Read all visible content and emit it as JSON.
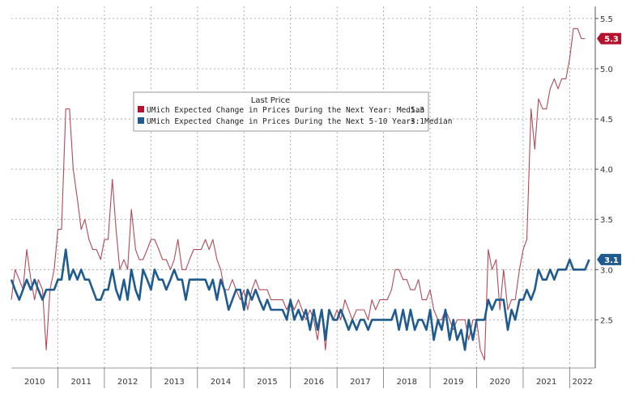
{
  "chart_data": {
    "type": "line",
    "title": "",
    "xlabel": "",
    "ylabel": "",
    "xlim": [
      2010.0,
      2022.55
    ],
    "ylim": [
      2.02,
      5.62
    ],
    "y_axis_side": "right",
    "y_ticks": [
      2.5,
      3.0,
      3.5,
      4.0,
      4.5,
      5.0,
      5.5
    ],
    "y_tick_labels": [
      "2.5",
      "3.0",
      "3.5",
      "4.0",
      "4.5",
      "5.0",
      "5.5"
    ],
    "x_year_labels": [
      "2010",
      "2011",
      "2012",
      "2013",
      "2014",
      "2015",
      "2016",
      "2017",
      "2018",
      "2019",
      "2020",
      "2021",
      "2022"
    ],
    "grid": true,
    "legend": {
      "title": "Last Price",
      "position": "top-center",
      "entries": [
        {
          "label": "UMich Expected Change in Prices During the Next Year: Median",
          "value": "5.3"
        },
        {
          "label": "UMich Expected Change in Prices During the Next 5-10 Years: Median",
          "value": "3.1"
        }
      ]
    },
    "series": [
      {
        "color": "#b04a5a",
        "last_value_label": "5.3",
        "badge_color": "#b5122e",
        "points": [
          [
            2010.0,
            2.7
          ],
          [
            2010.08,
            3.0
          ],
          [
            2010.17,
            2.9
          ],
          [
            2010.25,
            2.8
          ],
          [
            2010.33,
            3.2
          ],
          [
            2010.42,
            2.9
          ],
          [
            2010.5,
            2.7
          ],
          [
            2010.58,
            2.9
          ],
          [
            2010.67,
            2.8
          ],
          [
            2010.75,
            2.2
          ],
          [
            2010.83,
            2.8
          ],
          [
            2010.92,
            3.0
          ],
          [
            2011.0,
            3.4
          ],
          [
            2011.08,
            3.4
          ],
          [
            2011.17,
            4.6
          ],
          [
            2011.25,
            4.6
          ],
          [
            2011.33,
            4.0
          ],
          [
            2011.42,
            3.7
          ],
          [
            2011.5,
            3.4
          ],
          [
            2011.58,
            3.5
          ],
          [
            2011.67,
            3.3
          ],
          [
            2011.75,
            3.2
          ],
          [
            2011.83,
            3.2
          ],
          [
            2011.92,
            3.1
          ],
          [
            2012.0,
            3.3
          ],
          [
            2012.08,
            3.3
          ],
          [
            2012.17,
            3.9
          ],
          [
            2012.25,
            3.4
          ],
          [
            2012.33,
            3.0
          ],
          [
            2012.42,
            3.1
          ],
          [
            2012.5,
            3.0
          ],
          [
            2012.58,
            3.6
          ],
          [
            2012.67,
            3.2
          ],
          [
            2012.75,
            3.1
          ],
          [
            2012.83,
            3.1
          ],
          [
            2012.92,
            3.2
          ],
          [
            2013.0,
            3.3
          ],
          [
            2013.08,
            3.3
          ],
          [
            2013.17,
            3.2
          ],
          [
            2013.25,
            3.1
          ],
          [
            2013.33,
            3.1
          ],
          [
            2013.42,
            3.0
          ],
          [
            2013.5,
            3.1
          ],
          [
            2013.58,
            3.3
          ],
          [
            2013.67,
            3.0
          ],
          [
            2013.75,
            3.0
          ],
          [
            2013.83,
            3.1
          ],
          [
            2013.92,
            3.2
          ],
          [
            2014.0,
            3.2
          ],
          [
            2014.08,
            3.2
          ],
          [
            2014.17,
            3.3
          ],
          [
            2014.25,
            3.2
          ],
          [
            2014.33,
            3.3
          ],
          [
            2014.42,
            3.1
          ],
          [
            2014.5,
            3.0
          ],
          [
            2014.58,
            2.8
          ],
          [
            2014.67,
            2.8
          ],
          [
            2014.75,
            2.9
          ],
          [
            2014.83,
            2.8
          ],
          [
            2014.92,
            2.7
          ],
          [
            2015.0,
            2.8
          ],
          [
            2015.08,
            2.6
          ],
          [
            2015.17,
            2.8
          ],
          [
            2015.25,
            2.9
          ],
          [
            2015.33,
            2.8
          ],
          [
            2015.42,
            2.8
          ],
          [
            2015.5,
            2.8
          ],
          [
            2015.58,
            2.7
          ],
          [
            2015.67,
            2.7
          ],
          [
            2015.75,
            2.7
          ],
          [
            2015.83,
            2.7
          ],
          [
            2015.92,
            2.6
          ],
          [
            2016.0,
            2.7
          ],
          [
            2016.08,
            2.6
          ],
          [
            2016.17,
            2.7
          ],
          [
            2016.25,
            2.6
          ],
          [
            2016.33,
            2.5
          ],
          [
            2016.42,
            2.6
          ],
          [
            2016.5,
            2.5
          ],
          [
            2016.58,
            2.3
          ],
          [
            2016.67,
            2.6
          ],
          [
            2016.75,
            2.2
          ],
          [
            2016.83,
            2.6
          ],
          [
            2016.92,
            2.5
          ],
          [
            2017.0,
            2.6
          ],
          [
            2017.08,
            2.5
          ],
          [
            2017.17,
            2.7
          ],
          [
            2017.25,
            2.6
          ],
          [
            2017.33,
            2.5
          ],
          [
            2017.42,
            2.6
          ],
          [
            2017.5,
            2.6
          ],
          [
            2017.58,
            2.6
          ],
          [
            2017.67,
            2.5
          ],
          [
            2017.75,
            2.7
          ],
          [
            2017.83,
            2.6
          ],
          [
            2017.92,
            2.7
          ],
          [
            2018.0,
            2.7
          ],
          [
            2018.08,
            2.7
          ],
          [
            2018.17,
            2.8
          ],
          [
            2018.25,
            3.0
          ],
          [
            2018.33,
            3.0
          ],
          [
            2018.42,
            2.9
          ],
          [
            2018.5,
            2.9
          ],
          [
            2018.58,
            2.8
          ],
          [
            2018.67,
            2.8
          ],
          [
            2018.75,
            2.9
          ],
          [
            2018.83,
            2.7
          ],
          [
            2018.92,
            2.7
          ],
          [
            2019.0,
            2.8
          ],
          [
            2019.08,
            2.6
          ],
          [
            2019.17,
            2.5
          ],
          [
            2019.25,
            2.5
          ],
          [
            2019.33,
            2.6
          ],
          [
            2019.42,
            2.5
          ],
          [
            2019.5,
            2.4
          ],
          [
            2019.58,
            2.5
          ],
          [
            2019.67,
            2.5
          ],
          [
            2019.75,
            2.5
          ],
          [
            2019.83,
            2.3
          ],
          [
            2019.92,
            2.5
          ],
          [
            2020.0,
            2.5
          ],
          [
            2020.08,
            2.2
          ],
          [
            2020.17,
            2.1
          ],
          [
            2020.25,
            3.2
          ],
          [
            2020.33,
            3.0
          ],
          [
            2020.42,
            3.1
          ],
          [
            2020.5,
            2.6
          ],
          [
            2020.58,
            3.0
          ],
          [
            2020.67,
            2.6
          ],
          [
            2020.75,
            2.7
          ],
          [
            2020.83,
            2.7
          ],
          [
            2020.92,
            3.0
          ],
          [
            2021.0,
            3.2
          ],
          [
            2021.08,
            3.3
          ],
          [
            2021.17,
            4.6
          ],
          [
            2021.25,
            4.2
          ],
          [
            2021.33,
            4.7
          ],
          [
            2021.42,
            4.6
          ],
          [
            2021.5,
            4.6
          ],
          [
            2021.58,
            4.8
          ],
          [
            2021.67,
            4.9
          ],
          [
            2021.75,
            4.8
          ],
          [
            2021.83,
            4.9
          ],
          [
            2021.92,
            4.9
          ],
          [
            2022.0,
            5.1
          ],
          [
            2022.08,
            5.4
          ],
          [
            2022.17,
            5.4
          ],
          [
            2022.25,
            5.3
          ],
          [
            2022.33,
            5.3
          ]
        ]
      },
      {
        "color": "#1f5b8e",
        "last_value_label": "3.1",
        "badge_color": "#1f5b8e",
        "points": [
          [
            2010.0,
            2.9
          ],
          [
            2010.08,
            2.8
          ],
          [
            2010.17,
            2.7
          ],
          [
            2010.25,
            2.8
          ],
          [
            2010.33,
            2.9
          ],
          [
            2010.42,
            2.8
          ],
          [
            2010.5,
            2.9
          ],
          [
            2010.58,
            2.8
          ],
          [
            2010.67,
            2.7
          ],
          [
            2010.75,
            2.8
          ],
          [
            2010.83,
            2.8
          ],
          [
            2010.92,
            2.8
          ],
          [
            2011.0,
            2.9
          ],
          [
            2011.08,
            2.9
          ],
          [
            2011.17,
            3.2
          ],
          [
            2011.25,
            2.9
          ],
          [
            2011.33,
            3.0
          ],
          [
            2011.42,
            2.9
          ],
          [
            2011.5,
            3.0
          ],
          [
            2011.58,
            2.9
          ],
          [
            2011.67,
            2.9
          ],
          [
            2011.75,
            2.8
          ],
          [
            2011.83,
            2.7
          ],
          [
            2011.92,
            2.7
          ],
          [
            2012.0,
            2.8
          ],
          [
            2012.08,
            2.8
          ],
          [
            2012.17,
            3.0
          ],
          [
            2012.25,
            2.8
          ],
          [
            2012.33,
            2.7
          ],
          [
            2012.42,
            2.9
          ],
          [
            2012.5,
            2.7
          ],
          [
            2012.58,
            3.0
          ],
          [
            2012.67,
            2.8
          ],
          [
            2012.75,
            2.7
          ],
          [
            2012.83,
            3.0
          ],
          [
            2012.92,
            2.9
          ],
          [
            2013.0,
            2.8
          ],
          [
            2013.08,
            3.0
          ],
          [
            2013.17,
            2.9
          ],
          [
            2013.25,
            2.9
          ],
          [
            2013.33,
            2.8
          ],
          [
            2013.42,
            2.9
          ],
          [
            2013.5,
            3.0
          ],
          [
            2013.58,
            2.9
          ],
          [
            2013.67,
            2.9
          ],
          [
            2013.75,
            2.7
          ],
          [
            2013.83,
            2.9
          ],
          [
            2013.92,
            2.9
          ],
          [
            2014.0,
            2.9
          ],
          [
            2014.08,
            2.9
          ],
          [
            2014.17,
            2.9
          ],
          [
            2014.25,
            2.8
          ],
          [
            2014.33,
            2.9
          ],
          [
            2014.42,
            2.7
          ],
          [
            2014.5,
            2.9
          ],
          [
            2014.58,
            2.8
          ],
          [
            2014.67,
            2.6
          ],
          [
            2014.75,
            2.7
          ],
          [
            2014.83,
            2.8
          ],
          [
            2014.92,
            2.8
          ],
          [
            2015.0,
            2.6
          ],
          [
            2015.08,
            2.8
          ],
          [
            2015.17,
            2.7
          ],
          [
            2015.25,
            2.8
          ],
          [
            2015.33,
            2.7
          ],
          [
            2015.42,
            2.6
          ],
          [
            2015.5,
            2.7
          ],
          [
            2015.58,
            2.6
          ],
          [
            2015.67,
            2.6
          ],
          [
            2015.75,
            2.6
          ],
          [
            2015.83,
            2.6
          ],
          [
            2015.92,
            2.5
          ],
          [
            2016.0,
            2.7
          ],
          [
            2016.08,
            2.5
          ],
          [
            2016.17,
            2.6
          ],
          [
            2016.25,
            2.5
          ],
          [
            2016.33,
            2.6
          ],
          [
            2016.42,
            2.4
          ],
          [
            2016.5,
            2.6
          ],
          [
            2016.58,
            2.4
          ],
          [
            2016.67,
            2.6
          ],
          [
            2016.75,
            2.3
          ],
          [
            2016.83,
            2.6
          ],
          [
            2016.92,
            2.5
          ],
          [
            2017.0,
            2.5
          ],
          [
            2017.08,
            2.6
          ],
          [
            2017.17,
            2.5
          ],
          [
            2017.25,
            2.4
          ],
          [
            2017.33,
            2.5
          ],
          [
            2017.42,
            2.4
          ],
          [
            2017.5,
            2.5
          ],
          [
            2017.58,
            2.5
          ],
          [
            2017.67,
            2.4
          ],
          [
            2017.75,
            2.5
          ],
          [
            2017.83,
            2.5
          ],
          [
            2017.92,
            2.5
          ],
          [
            2018.0,
            2.5
          ],
          [
            2018.08,
            2.5
          ],
          [
            2018.17,
            2.5
          ],
          [
            2018.25,
            2.6
          ],
          [
            2018.33,
            2.4
          ],
          [
            2018.42,
            2.6
          ],
          [
            2018.5,
            2.4
          ],
          [
            2018.58,
            2.6
          ],
          [
            2018.67,
            2.4
          ],
          [
            2018.75,
            2.5
          ],
          [
            2018.83,
            2.5
          ],
          [
            2018.92,
            2.4
          ],
          [
            2019.0,
            2.6
          ],
          [
            2019.08,
            2.3
          ],
          [
            2019.17,
            2.5
          ],
          [
            2019.25,
            2.4
          ],
          [
            2019.33,
            2.6
          ],
          [
            2019.42,
            2.3
          ],
          [
            2019.5,
            2.5
          ],
          [
            2019.58,
            2.3
          ],
          [
            2019.67,
            2.4
          ],
          [
            2019.75,
            2.2
          ],
          [
            2019.83,
            2.5
          ],
          [
            2019.92,
            2.3
          ],
          [
            2020.0,
            2.5
          ],
          [
            2020.08,
            2.5
          ],
          [
            2020.17,
            2.5
          ],
          [
            2020.25,
            2.7
          ],
          [
            2020.33,
            2.6
          ],
          [
            2020.42,
            2.7
          ],
          [
            2020.5,
            2.7
          ],
          [
            2020.58,
            2.7
          ],
          [
            2020.67,
            2.4
          ],
          [
            2020.75,
            2.6
          ],
          [
            2020.83,
            2.5
          ],
          [
            2020.92,
            2.7
          ],
          [
            2021.0,
            2.7
          ],
          [
            2021.08,
            2.8
          ],
          [
            2021.17,
            2.7
          ],
          [
            2021.25,
            2.8
          ],
          [
            2021.33,
            3.0
          ],
          [
            2021.42,
            2.9
          ],
          [
            2021.5,
            2.9
          ],
          [
            2021.58,
            3.0
          ],
          [
            2021.67,
            2.9
          ],
          [
            2021.75,
            3.0
          ],
          [
            2021.83,
            3.0
          ],
          [
            2021.92,
            3.0
          ],
          [
            2022.0,
            3.1
          ],
          [
            2022.08,
            3.0
          ],
          [
            2022.17,
            3.0
          ],
          [
            2022.25,
            3.0
          ],
          [
            2022.33,
            3.0
          ],
          [
            2022.42,
            3.1
          ]
        ]
      }
    ]
  }
}
